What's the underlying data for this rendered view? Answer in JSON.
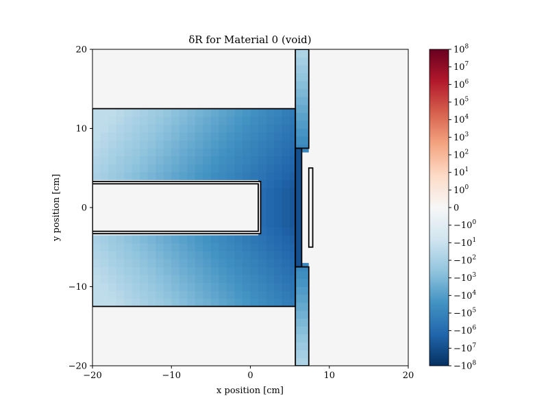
{
  "chart_data": {
    "type": "heatmap",
    "title": "δR for Material 0 (void)",
    "xlabel": "x position [cm]",
    "ylabel": "y position [cm]",
    "xlim": [
      -20,
      20
    ],
    "ylim": [
      -20,
      20
    ],
    "x_ticks": [
      -20,
      -10,
      0,
      10,
      20
    ],
    "x_tick_labels": [
      "−20",
      "−10",
      "0",
      "10",
      "20"
    ],
    "y_ticks": [
      -20,
      -10,
      0,
      10,
      20
    ],
    "y_tick_labels": [
      "−20",
      "−10",
      "0",
      "10",
      "20"
    ],
    "grid": false,
    "colormap": "RdBu_r",
    "color_scale": "symlog",
    "color_range": [
      -100000000,
      100000000
    ],
    "background_color": "#f5f5f5",
    "colorbar": {
      "position": "right",
      "ticks": [
        {
          "base": "10",
          "exp": "8",
          "sign": "",
          "zero": false
        },
        {
          "base": "10",
          "exp": "7",
          "sign": "",
          "zero": false
        },
        {
          "base": "10",
          "exp": "6",
          "sign": "",
          "zero": false
        },
        {
          "base": "10",
          "exp": "5",
          "sign": "",
          "zero": false
        },
        {
          "base": "10",
          "exp": "4",
          "sign": "",
          "zero": false
        },
        {
          "base": "10",
          "exp": "3",
          "sign": "",
          "zero": false
        },
        {
          "base": "10",
          "exp": "2",
          "sign": "",
          "zero": false
        },
        {
          "base": "10",
          "exp": "1",
          "sign": "",
          "zero": false
        },
        {
          "base": "10",
          "exp": "0",
          "sign": "",
          "zero": false
        },
        {
          "base": "0",
          "exp": "",
          "sign": "",
          "zero": true
        },
        {
          "base": "10",
          "exp": "0",
          "sign": "−",
          "zero": false
        },
        {
          "base": "10",
          "exp": "1",
          "sign": "−",
          "zero": false
        },
        {
          "base": "10",
          "exp": "2",
          "sign": "−",
          "zero": false
        },
        {
          "base": "10",
          "exp": "3",
          "sign": "−",
          "zero": false
        },
        {
          "base": "10",
          "exp": "4",
          "sign": "−",
          "zero": false
        },
        {
          "base": "10",
          "exp": "5",
          "sign": "−",
          "zero": false
        },
        {
          "base": "10",
          "exp": "6",
          "sign": "−",
          "zero": false
        },
        {
          "base": "10",
          "exp": "7",
          "sign": "−",
          "zero": false
        },
        {
          "base": "10",
          "exp": "8",
          "sign": "−",
          "zero": false
        }
      ]
    },
    "regions": [
      {
        "name": "moderator-upper",
        "x": [
          -20,
          5.7
        ],
        "y": [
          3.3,
          12.5
        ],
        "value_range": [
          -1000,
          -1000000
        ]
      },
      {
        "name": "moderator-lower",
        "x": [
          -20,
          5.7
        ],
        "y": [
          -12.5,
          -3.3
        ],
        "value_range": [
          -1000,
          -1000000
        ]
      },
      {
        "name": "moderator-near-face",
        "x": [
          1.3,
          5.7
        ],
        "y": [
          -3.3,
          3.3
        ],
        "value_range": [
          -1000000,
          -100000000
        ]
      },
      {
        "name": "reflector-strip-upper",
        "x": [
          5.7,
          7.4
        ],
        "y": [
          7.5,
          20
        ],
        "value_range": [
          -100,
          -100000
        ]
      },
      {
        "name": "reflector-strip-lower",
        "x": [
          5.7,
          7.4
        ],
        "y": [
          -20,
          -7.5
        ],
        "value_range": [
          -100,
          -100000
        ]
      },
      {
        "name": "thin-gap",
        "x": [
          5.7,
          6.5
        ],
        "y": [
          -7.5,
          7.5
        ],
        "value_range": [
          -10000000,
          -10000000
        ]
      }
    ],
    "outlines": [
      {
        "name": "outer-slab",
        "x": [
          -20,
          5.7
        ],
        "y": [
          -12.5,
          12.5
        ]
      },
      {
        "name": "inner-channel-outer",
        "x": [
          -20,
          1.3
        ],
        "y": [
          -3.3,
          3.3
        ]
      },
      {
        "name": "inner-channel-inner",
        "x": [
          -20,
          1.0
        ],
        "y": [
          -3.0,
          3.0
        ]
      },
      {
        "name": "upper-strip",
        "x": [
          5.7,
          7.4
        ],
        "y": [
          7.5,
          20
        ]
      },
      {
        "name": "lower-strip",
        "x": [
          5.7,
          7.4
        ],
        "y": [
          -20,
          -7.5
        ]
      },
      {
        "name": "gap-inner",
        "x": [
          5.7,
          6.5
        ],
        "y": [
          -7.5,
          7.5
        ]
      },
      {
        "name": "small-detector",
        "x": [
          7.4,
          7.9
        ],
        "y": [
          -5,
          5
        ]
      }
    ]
  }
}
